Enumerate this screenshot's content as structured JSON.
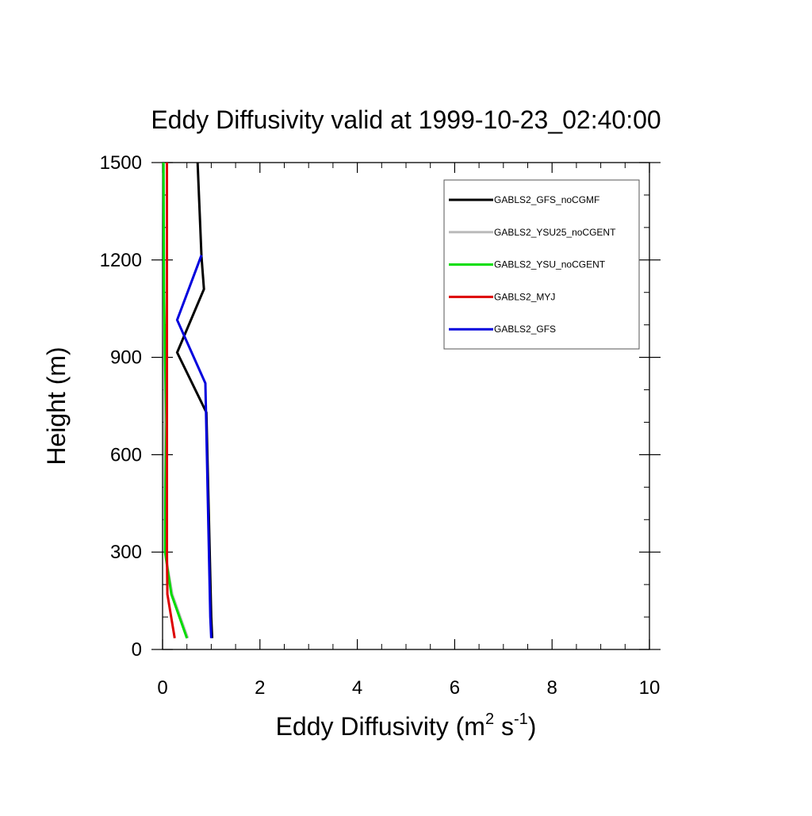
{
  "chart_data": {
    "type": "line",
    "title": "Eddy Diffusivity valid at 1999-10-23_02:40:00",
    "xlabel": "Eddy Diffusivity (m",
    "xlabel_sup1": "2",
    "xlabel_mid": " s",
    "xlabel_sup2": "-1",
    "xlabel_end": ")",
    "ylabel": "Height (m)",
    "xlim": [
      0,
      10
    ],
    "ylim": [
      0,
      1500
    ],
    "xticks": [
      0,
      2,
      4,
      6,
      8,
      10
    ],
    "yticks": [
      0,
      300,
      600,
      900,
      1200,
      1500
    ],
    "grid": false,
    "legend_position": "top-right",
    "series": [
      {
        "name": "GABLS2_GFS_noCGMF",
        "color": "#000000",
        "points": [
          [
            1.02,
            35
          ],
          [
            1.0,
            100
          ],
          [
            0.9,
            730
          ],
          [
            0.3,
            915
          ],
          [
            0.85,
            1110
          ],
          [
            0.8,
            1210
          ],
          [
            0.72,
            1500
          ]
        ]
      },
      {
        "name": "GABLS2_YSU25_noCGENT",
        "color": "#bbbbbb",
        "points": [
          [
            0.52,
            35
          ],
          [
            0.2,
            170
          ],
          [
            0.05,
            300
          ],
          [
            0.04,
            450
          ],
          [
            0.04,
            700
          ],
          [
            0.03,
            1000
          ],
          [
            0.02,
            1500
          ]
        ]
      },
      {
        "name": "GABLS2_YSU_noCGENT",
        "color": "#00dd00",
        "points": [
          [
            0.5,
            35
          ],
          [
            0.18,
            170
          ],
          [
            0.05,
            300
          ],
          [
            0.06,
            500
          ],
          [
            0.08,
            700
          ],
          [
            0.05,
            900
          ],
          [
            0.03,
            1100
          ],
          [
            0.02,
            1500
          ]
        ]
      },
      {
        "name": "GABLS2_MYJ",
        "color": "#dd0000",
        "points": [
          [
            0.25,
            35
          ],
          [
            0.1,
            170
          ],
          [
            0.09,
            300
          ],
          [
            0.09,
            600
          ],
          [
            0.09,
            900
          ],
          [
            0.09,
            1200
          ],
          [
            0.09,
            1500
          ]
        ]
      },
      {
        "name": "GABLS2_GFS",
        "color": "#0000dd",
        "points": [
          [
            1.0,
            35
          ],
          [
            0.98,
            100
          ],
          [
            0.88,
            820
          ],
          [
            0.3,
            1015
          ],
          [
            0.8,
            1215
          ]
        ]
      }
    ]
  }
}
